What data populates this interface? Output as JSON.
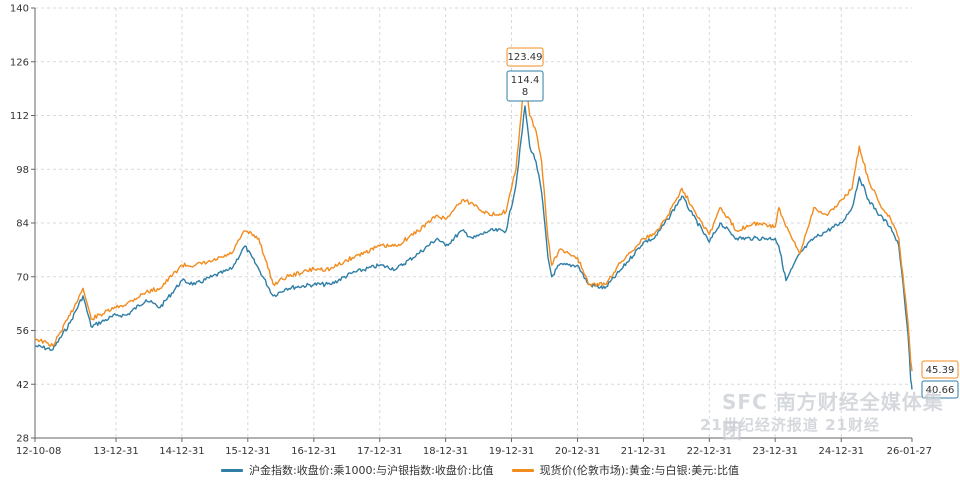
{
  "chart_data": {
    "type": "line",
    "ylim": [
      28,
      140
    ],
    "yticks": [
      28,
      42,
      56,
      70,
      84,
      98,
      112,
      126,
      140
    ],
    "xlim": [
      "2012-10-08",
      "2026-01-27"
    ],
    "xticks": [
      "12-10-08",
      "13-12-31",
      "14-12-31",
      "15-12-31",
      "16-12-31",
      "17-12-31",
      "18-12-31",
      "19-12-31",
      "20-12-31",
      "21-12-31",
      "22-12-31",
      "23-12-31",
      "24-12-31",
      "26-01-27"
    ],
    "grid": true,
    "legend_position": "bottom",
    "series": [
      {
        "name": "沪金指数:收盘价:乘1000:与沪银指数:收盘价:比值",
        "color": "#2e7ea6",
        "points": [
          [
            "2012-10-08",
            52
          ],
          [
            "2013-01-15",
            51
          ],
          [
            "2013-04-20",
            58
          ],
          [
            "2013-07-01",
            65
          ],
          [
            "2013-08-15",
            57
          ],
          [
            "2013-12-31",
            60
          ],
          [
            "2014-03-01",
            60
          ],
          [
            "2014-06-15",
            64
          ],
          [
            "2014-09-01",
            62
          ],
          [
            "2014-12-31",
            69
          ],
          [
            "2015-03-15",
            68
          ],
          [
            "2015-06-15",
            70
          ],
          [
            "2015-10-01",
            72
          ],
          [
            "2015-12-15",
            78
          ],
          [
            "2016-03-01",
            72
          ],
          [
            "2016-05-20",
            65
          ],
          [
            "2016-08-01",
            67
          ],
          [
            "2016-12-31",
            68
          ],
          [
            "2017-04-01",
            68
          ],
          [
            "2017-08-01",
            71
          ],
          [
            "2017-12-31",
            73
          ],
          [
            "2018-04-01",
            72
          ],
          [
            "2018-08-01",
            76
          ],
          [
            "2018-11-15",
            80
          ],
          [
            "2018-12-31",
            78
          ],
          [
            "2019-04-01",
            82
          ],
          [
            "2019-06-01",
            80
          ],
          [
            "2019-09-01",
            82
          ],
          [
            "2019-12-01",
            82
          ],
          [
            "2020-01-25",
            94
          ],
          [
            "2020-03-15",
            114.48
          ],
          [
            "2020-04-10",
            104
          ],
          [
            "2020-05-15",
            100
          ],
          [
            "2020-06-15",
            92
          ],
          [
            "2020-07-20",
            75
          ],
          [
            "2020-08-10",
            70
          ],
          [
            "2020-09-20",
            73
          ],
          [
            "2020-12-31",
            73
          ],
          [
            "2021-03-01",
            68
          ],
          [
            "2021-06-01",
            67
          ],
          [
            "2021-09-01",
            72
          ],
          [
            "2021-12-31",
            79
          ],
          [
            "2022-03-01",
            80
          ],
          [
            "2022-05-15",
            85
          ],
          [
            "2022-08-01",
            91
          ],
          [
            "2022-10-01",
            86
          ],
          [
            "2022-12-31",
            79
          ],
          [
            "2023-03-01",
            84
          ],
          [
            "2023-06-01",
            80
          ],
          [
            "2023-09-01",
            80
          ],
          [
            "2023-12-31",
            80
          ],
          [
            "2024-01-20",
            78
          ],
          [
            "2024-02-29",
            69
          ],
          [
            "2024-05-15",
            76
          ],
          [
            "2024-08-01",
            80
          ],
          [
            "2024-10-15",
            82
          ],
          [
            "2024-12-31",
            84
          ],
          [
            "2025-03-01",
            88
          ],
          [
            "2025-04-10",
            96
          ],
          [
            "2025-06-01",
            90
          ],
          [
            "2025-08-01",
            86
          ],
          [
            "2025-10-01",
            83
          ],
          [
            "2025-11-15",
            78
          ],
          [
            "2025-12-15",
            65
          ],
          [
            "2026-01-05",
            55
          ],
          [
            "2026-01-20",
            43
          ],
          [
            "2026-01-27",
            40.66
          ]
        ],
        "labels": [
          {
            "date": "2020-03-15",
            "text": "114.48"
          },
          {
            "date": "2026-01-27",
            "text": "40.66"
          }
        ]
      },
      {
        "name": "现货价(伦敦市场):黄金:与白银:美元:比值",
        "color": "#f28c1e",
        "points": [
          [
            "2012-10-08",
            54
          ],
          [
            "2013-01-15",
            52
          ],
          [
            "2013-04-20",
            60
          ],
          [
            "2013-07-01",
            67
          ],
          [
            "2013-08-15",
            59
          ],
          [
            "2013-12-31",
            62
          ],
          [
            "2014-03-01",
            63
          ],
          [
            "2014-06-15",
            66
          ],
          [
            "2014-09-01",
            67
          ],
          [
            "2014-12-31",
            73
          ],
          [
            "2015-03-15",
            73
          ],
          [
            "2015-06-15",
            74
          ],
          [
            "2015-10-01",
            76
          ],
          [
            "2015-12-15",
            82
          ],
          [
            "2016-03-01",
            80
          ],
          [
            "2016-05-20",
            68
          ],
          [
            "2016-08-01",
            70
          ],
          [
            "2016-12-31",
            72
          ],
          [
            "2017-04-01",
            72
          ],
          [
            "2017-08-01",
            75
          ],
          [
            "2017-12-31",
            78
          ],
          [
            "2018-04-01",
            78
          ],
          [
            "2018-08-01",
            82
          ],
          [
            "2018-11-15",
            86
          ],
          [
            "2018-12-31",
            85
          ],
          [
            "2019-04-01",
            90
          ],
          [
            "2019-06-01",
            89
          ],
          [
            "2019-09-01",
            86
          ],
          [
            "2019-12-01",
            87
          ],
          [
            "2020-01-25",
            98
          ],
          [
            "2020-03-15",
            123.49
          ],
          [
            "2020-04-10",
            112
          ],
          [
            "2020-05-15",
            108
          ],
          [
            "2020-06-15",
            100
          ],
          [
            "2020-07-20",
            80
          ],
          [
            "2020-08-10",
            73
          ],
          [
            "2020-09-20",
            77
          ],
          [
            "2020-12-31",
            75
          ],
          [
            "2021-03-01",
            68
          ],
          [
            "2021-06-01",
            68
          ],
          [
            "2021-09-01",
            74
          ],
          [
            "2021-12-31",
            80
          ],
          [
            "2022-03-01",
            81
          ],
          [
            "2022-05-15",
            86
          ],
          [
            "2022-08-01",
            93
          ],
          [
            "2022-10-01",
            88
          ],
          [
            "2022-12-31",
            81
          ],
          [
            "2023-03-01",
            88
          ],
          [
            "2023-06-01",
            82
          ],
          [
            "2023-09-01",
            84
          ],
          [
            "2023-12-31",
            83
          ],
          [
            "2024-01-20",
            88
          ],
          [
            "2024-02-29",
            83
          ],
          [
            "2024-05-15",
            76
          ],
          [
            "2024-08-01",
            88
          ],
          [
            "2024-10-15",
            86
          ],
          [
            "2024-12-31",
            90
          ],
          [
            "2025-03-01",
            93
          ],
          [
            "2025-04-10",
            104
          ],
          [
            "2025-06-01",
            95
          ],
          [
            "2025-08-01",
            89
          ],
          [
            "2025-10-01",
            85
          ],
          [
            "2025-11-15",
            80
          ],
          [
            "2025-12-15",
            67
          ],
          [
            "2026-01-05",
            58
          ],
          [
            "2026-01-20",
            48
          ],
          [
            "2026-01-27",
            45.39
          ]
        ],
        "labels": [
          {
            "date": "2020-03-15",
            "text": "123.49"
          },
          {
            "date": "2026-01-27",
            "text": "45.39"
          }
        ]
      }
    ]
  },
  "watermark": {
    "main": "SFC 南方财经全媒体集团",
    "sub": "21世纪经济报道  21财经"
  }
}
